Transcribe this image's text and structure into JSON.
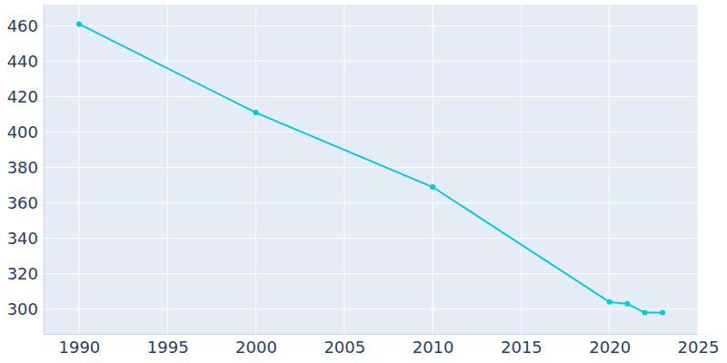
{
  "chart_data": {
    "type": "line",
    "x": [
      1990,
      2000,
      2010,
      2020,
      2021,
      2022,
      2023
    ],
    "values": [
      461,
      411,
      369,
      304,
      303,
      298,
      298
    ],
    "color": "#00cdd0",
    "marker": "circle",
    "xlim": [
      1988,
      2025
    ],
    "xticks": [
      1990,
      1995,
      2000,
      2005,
      2010,
      2015,
      2020,
      2025
    ],
    "ylim": [
      286,
      472
    ],
    "yticks": [
      300,
      320,
      340,
      360,
      380,
      400,
      420,
      440,
      460
    ],
    "grid": true
  }
}
